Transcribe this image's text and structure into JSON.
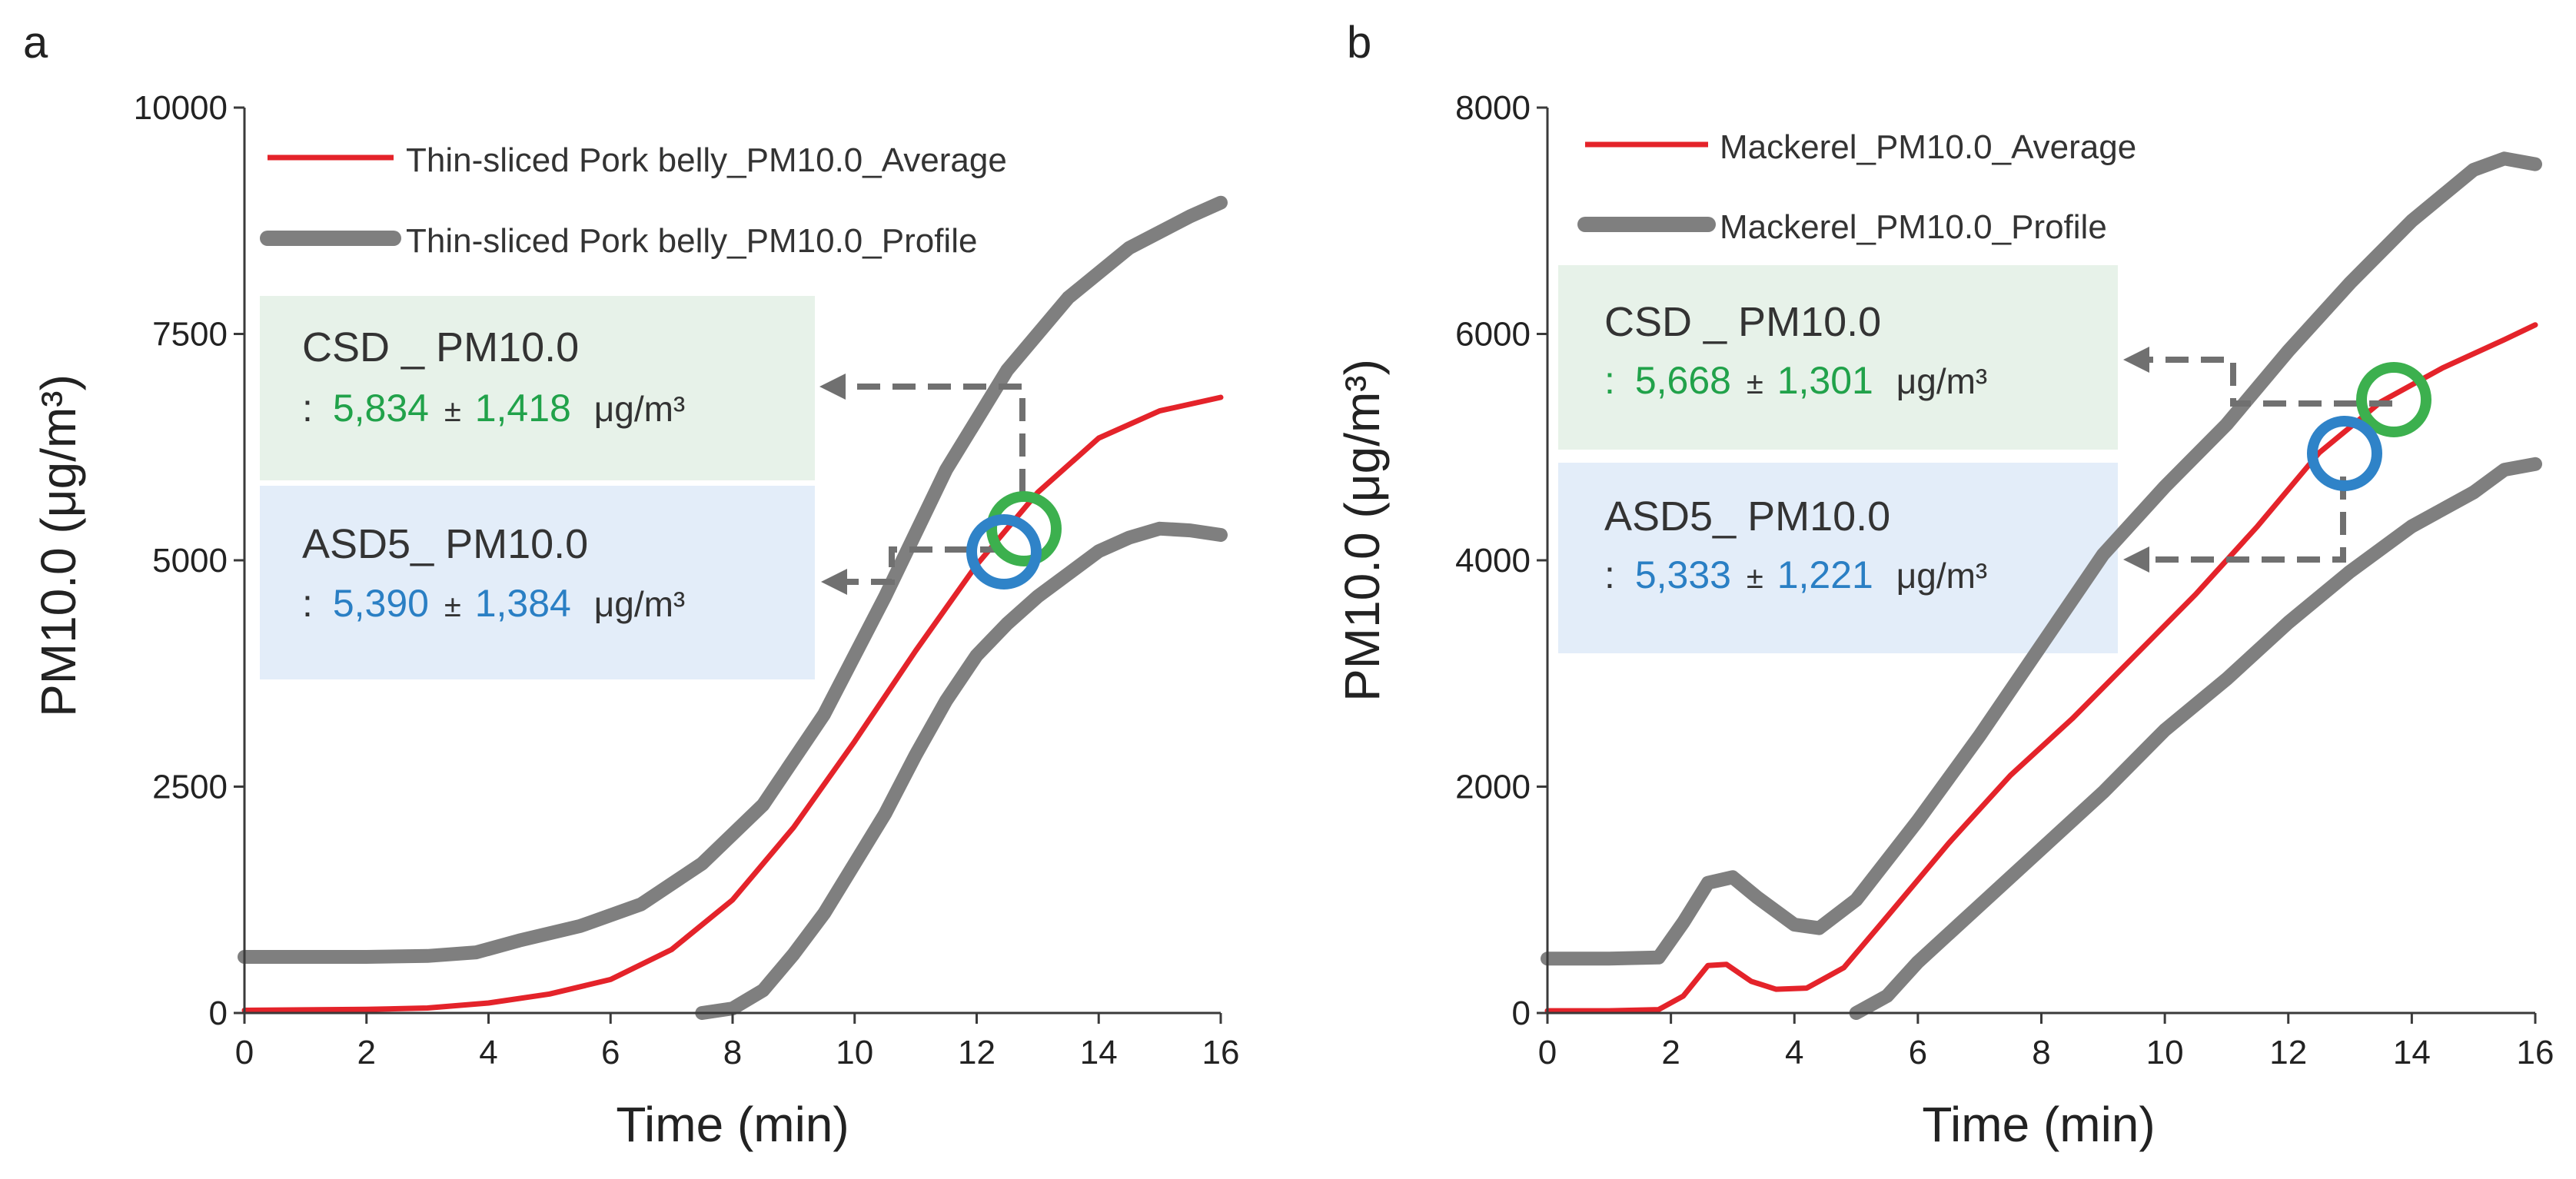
{
  "colors": {
    "average": "#e4232a",
    "profile": "#7f7f7f",
    "green_text": "#21a24a",
    "blue_text": "#2a7fc4",
    "green_box": "#e7f2e9",
    "blue_box": "#e3edf9",
    "axis": "#3a3a3a",
    "text": "#222222",
    "arrow": "#707070",
    "circle_green": "#3cb04e",
    "circle_blue": "#2f83c8"
  },
  "chart_data": [
    {
      "panel_label": "a",
      "type": "line",
      "xlabel": "Time (min)",
      "ylabel": "PM10.0 (μg/m³)",
      "xlim": [
        0,
        16
      ],
      "ylim": [
        0,
        10000
      ],
      "xticks": [
        "0",
        "2",
        "4",
        "6",
        "8",
        "10",
        "12",
        "14",
        "16"
      ],
      "yticks": [
        "0",
        "2500",
        "5000",
        "7500",
        "10000"
      ],
      "legend": {
        "average_label": "Thin-sliced Pork belly_PM10.0_Average",
        "profile_label": "Thin-sliced Pork belly_PM10.0_Profile"
      },
      "series": [
        {
          "name": "Upper profile",
          "role": "profile",
          "x": [
            0,
            1,
            2,
            3,
            3.8,
            4.5,
            5.5,
            6.5,
            7.5,
            8.5,
            9.5,
            10.5,
            11.5,
            12.5,
            13.5,
            14.5,
            15.5,
            16
          ],
          "values": [
            620,
            620,
            620,
            630,
            670,
            800,
            960,
            1200,
            1650,
            2300,
            3300,
            4600,
            6000,
            7100,
            7900,
            8450,
            8800,
            8950
          ]
        },
        {
          "name": "Average",
          "role": "average",
          "x": [
            0,
            1,
            2,
            3,
            4,
            5,
            6,
            7,
            8,
            9,
            10,
            11,
            12,
            13,
            14,
            15,
            16
          ],
          "values": [
            30,
            35,
            40,
            55,
            110,
            210,
            370,
            700,
            1250,
            2050,
            3000,
            4000,
            4950,
            5750,
            6350,
            6650,
            6800
          ]
        },
        {
          "name": "Lower profile",
          "role": "profile",
          "x": [
            7.5,
            8,
            8.5,
            9,
            9.5,
            10,
            10.5,
            11,
            11.5,
            12,
            12.5,
            13,
            13.5,
            14,
            14.5,
            15,
            15.5,
            16
          ],
          "values": [
            0,
            50,
            250,
            650,
            1100,
            1650,
            2200,
            2850,
            3450,
            3950,
            4300,
            4600,
            4850,
            5100,
            5250,
            5350,
            5330,
            5280
          ]
        }
      ],
      "annotations": {
        "csd_title": "CSD _ PM10.0",
        "csd_prefix": ":",
        "csd_mean": "5,834",
        "csd_pm": "±",
        "csd_sd": "1,418",
        "csd_unit": "μg/m³",
        "asd_title": "ASD5_ PM10.0",
        "asd_prefix": ":",
        "asd_mean": "5,390",
        "asd_pm": "±",
        "asd_sd": "1,384",
        "asd_unit": "μg/m³"
      },
      "markers": {
        "csd_point": [
          12.8,
          5300
        ],
        "asd_point": [
          12.5,
          5100
        ]
      }
    },
    {
      "panel_label": "b",
      "type": "line",
      "xlabel": "Time (min)",
      "ylabel": "PM10.0 (μg/m³)",
      "xlim": [
        0,
        16
      ],
      "ylim": [
        0,
        8000
      ],
      "xticks": [
        "0",
        "2",
        "4",
        "6",
        "8",
        "10",
        "12",
        "14",
        "16"
      ],
      "yticks": [
        "0",
        "2000",
        "4000",
        "6000",
        "8000"
      ],
      "legend": {
        "average_label": "Mackerel_PM10.0_Average",
        "profile_label": "Mackerel_PM10.0_Profile"
      },
      "series": [
        {
          "name": "Upper profile",
          "role": "profile",
          "x": [
            0,
            1,
            1.8,
            2.2,
            2.6,
            3,
            3.4,
            4,
            4.4,
            5,
            6,
            7,
            8,
            9,
            10,
            11,
            12,
            13,
            14,
            15,
            15.5,
            16
          ],
          "values": [
            480,
            480,
            490,
            800,
            1150,
            1200,
            1020,
            780,
            750,
            1000,
            1700,
            2450,
            3250,
            4050,
            4650,
            5200,
            5850,
            6450,
            7000,
            7450,
            7550,
            7500
          ]
        },
        {
          "name": "Average",
          "role": "average",
          "x": [
            0,
            1,
            1.8,
            2.2,
            2.6,
            2.9,
            3.3,
            3.7,
            4.2,
            4.8,
            5.5,
            6.5,
            7.5,
            8.5,
            9.5,
            10.5,
            11.5,
            12.5,
            13.5,
            14.5,
            15.5,
            16
          ],
          "values": [
            20,
            20,
            30,
            150,
            420,
            430,
            280,
            210,
            220,
            400,
            850,
            1500,
            2100,
            2600,
            3150,
            3700,
            4300,
            4950,
            5400,
            5700,
            5950,
            6080
          ]
        },
        {
          "name": "Lower profile",
          "role": "profile",
          "x": [
            5,
            5.5,
            6,
            7,
            8,
            9,
            10,
            11,
            12,
            13,
            14,
            15,
            15.5,
            16
          ],
          "values": [
            0,
            150,
            450,
            950,
            1450,
            1950,
            2500,
            2950,
            3450,
            3900,
            4300,
            4600,
            4800,
            4850
          ]
        }
      ],
      "annotations": {
        "csd_title": "CSD _ PM10.0",
        "csd_prefix": ":",
        "csd_mean": "5,668",
        "csd_pm": "±",
        "csd_sd": "1,301",
        "csd_unit": "μg/m³",
        "asd_title": "ASD5_ PM10.0",
        "asd_prefix": ":",
        "asd_mean": "5,333",
        "asd_pm": "±",
        "asd_sd": "1,221",
        "asd_unit": "μg/m³"
      },
      "markers": {
        "csd_point": [
          13.7,
          5350
        ],
        "asd_point": [
          12.9,
          4950
        ]
      }
    }
  ]
}
